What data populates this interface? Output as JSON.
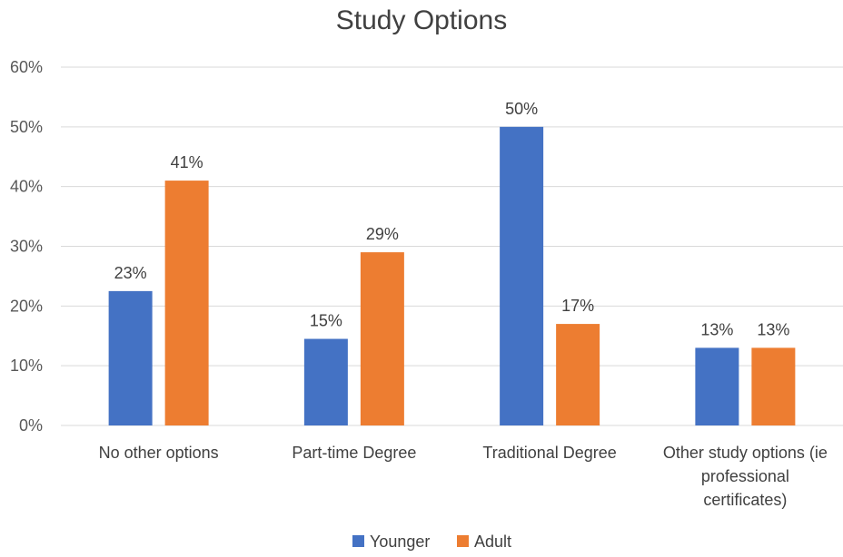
{
  "chart_data": {
    "type": "bar",
    "title": "Study Options",
    "xlabel": "",
    "ylabel": "",
    "categories": [
      "No other options",
      "Part-time Degree",
      "Traditional Degree",
      "Other study options (ie professional certificates)"
    ],
    "category_lines": [
      [
        "No other options"
      ],
      [
        "Part-time Degree"
      ],
      [
        "Traditional Degree"
      ],
      [
        "Other study options (ie",
        "professional",
        "certificates)"
      ]
    ],
    "series": [
      {
        "name": "Younger",
        "values": [
          0.225,
          0.145,
          0.5,
          0.13
        ],
        "labels": [
          "23%",
          "15%",
          "50%",
          "13%"
        ],
        "color": "#4472C4"
      },
      {
        "name": "Adult",
        "values": [
          0.41,
          0.29,
          0.17,
          0.13
        ],
        "labels": [
          "41%",
          "29%",
          "17%",
          "13%"
        ],
        "color": "#ED7D31"
      }
    ],
    "ylim": [
      0,
      0.6
    ],
    "yticks": [
      0,
      0.1,
      0.2,
      0.3,
      0.4,
      0.5,
      0.6
    ],
    "ytick_labels": [
      "0%",
      "10%",
      "20%",
      "30%",
      "40%",
      "50%",
      "60%"
    ],
    "grid": true,
    "legend_position": "bottom",
    "gridline_color": "#D9D9D9"
  }
}
